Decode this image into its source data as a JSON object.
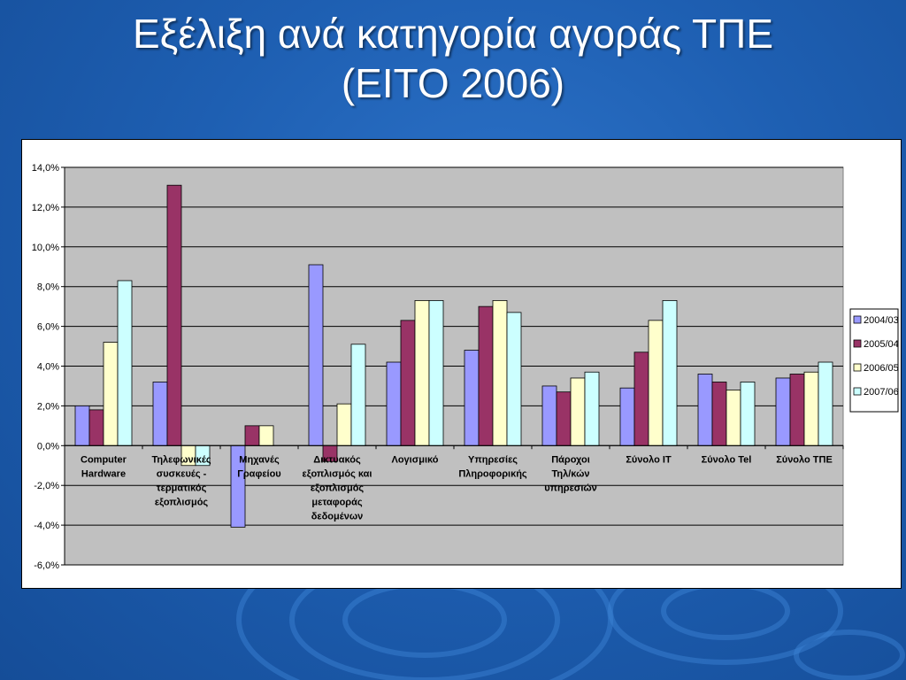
{
  "slide": {
    "title_line1": "Εξέλιξη ανά κατηγορία αγοράς ΤΠΕ",
    "title_line2": "(EITO 2006)"
  },
  "colors": {
    "background": "#1e5fb2",
    "plot_area": "#c0c0c0",
    "series": [
      "#9999ff",
      "#993366",
      "#ffffcc",
      "#ccffff"
    ]
  },
  "chart_data": {
    "type": "bar",
    "title": "",
    "xlabel": "",
    "ylabel": "",
    "ylim": [
      -6,
      14
    ],
    "y_ticks": [
      "14,0%",
      "12,0%",
      "10,0%",
      "8,0%",
      "6,0%",
      "4,0%",
      "2,0%",
      "0,0%",
      "-2,0%",
      "-4,0%",
      "-6,0%"
    ],
    "grid": true,
    "legend_position": "right",
    "categories": [
      [
        "Computer",
        "Hardware"
      ],
      [
        "Τηλεφωνικές",
        "συσκευές  -",
        "τερματικός",
        "εξοπλισμός"
      ],
      [
        "Μηχανές",
        "Γραφείου"
      ],
      [
        "Δικτυακός",
        "εξοπλισμός και",
        "εξοπλισμός",
        "μεταφοράς",
        "δεδομένων"
      ],
      [
        "Λογισμικό"
      ],
      [
        "Υπηρεσίες",
        "Πληροφορικής"
      ],
      [
        "Πάροχοι",
        "Τηλ/κών",
        "υπηρεσιών"
      ],
      [
        "Σύνολο ΙΤ"
      ],
      [
        "Σύνολο Tel"
      ],
      [
        "Σύνολο ΤΠΕ"
      ]
    ],
    "series": [
      {
        "name": "2004/03",
        "values": [
          2.0,
          3.2,
          -4.1,
          9.1,
          4.2,
          4.8,
          3.0,
          2.9,
          3.6,
          3.4
        ]
      },
      {
        "name": "2005/04",
        "values": [
          1.8,
          13.1,
          1.0,
          -0.8,
          6.3,
          7.0,
          2.7,
          4.7,
          3.2,
          3.6
        ]
      },
      {
        "name": "2006/05",
        "values": [
          5.2,
          -1.0,
          1.0,
          2.1,
          7.3,
          7.3,
          3.4,
          6.3,
          2.8,
          3.7
        ]
      },
      {
        "name": "2007/06",
        "values": [
          8.3,
          -1.0,
          0.0,
          5.1,
          7.3,
          6.7,
          3.7,
          7.3,
          3.2,
          4.2
        ]
      }
    ]
  }
}
